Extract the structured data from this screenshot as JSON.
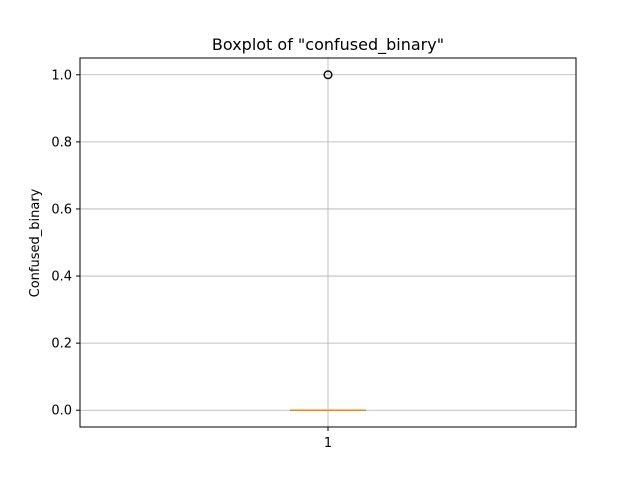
{
  "chart_data": {
    "type": "boxplot",
    "title": "Boxplot of \"confused_binary\"",
    "xlabel": "",
    "ylabel": "Confused_binary",
    "categories": [
      "1"
    ],
    "boxes": [
      {
        "category": "1",
        "min": 0.0,
        "q1": 0.0,
        "median": 0.0,
        "q3": 0.0,
        "max": 0.0,
        "outliers": [
          1.0
        ]
      }
    ],
    "ylim": [
      -0.05,
      1.05
    ],
    "yticks": [
      0.0,
      0.2,
      0.4,
      0.6,
      0.8,
      1.0
    ],
    "ytick_labels": [
      "0.0",
      "0.2",
      "0.4",
      "0.6",
      "0.8",
      "1.0"
    ],
    "grid": true,
    "colors": {
      "median": "#ff7f0e",
      "box": "#000000",
      "grid": "#b0b0b0",
      "outlier": "#000000"
    }
  }
}
